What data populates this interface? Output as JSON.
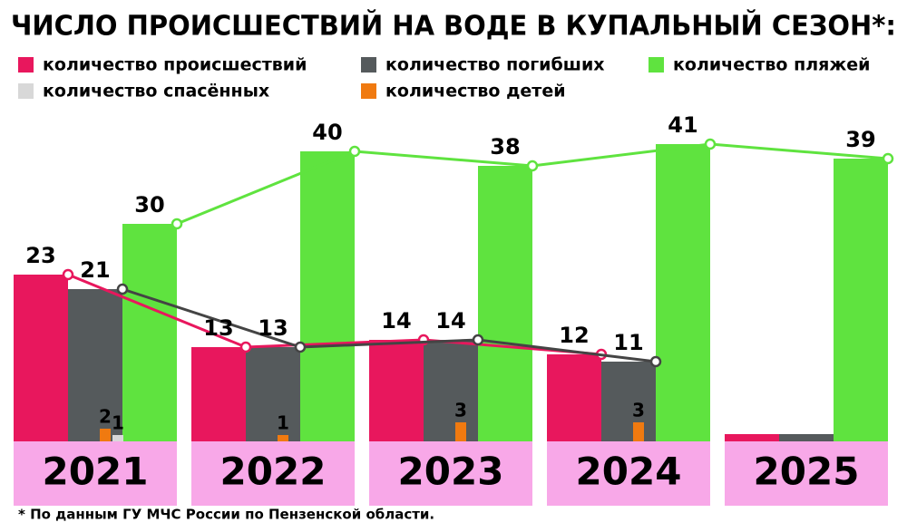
{
  "chart_data": {
    "type": "bar",
    "title": "ЧИСЛО ПРОИСШЕСТВИЙ НА ВОДЕ В КУПАЛЬНЫЙ СЕЗОН*:",
    "note": "* По данным ГУ МЧС России по Пензенской области.",
    "categories": [
      "2021",
      "2022",
      "2023",
      "2024",
      "2025"
    ],
    "ylim": [
      0,
      45
    ],
    "series": [
      {
        "name": "количество происшествий",
        "color": "#e8175d",
        "line": true,
        "values": [
          23,
          13,
          14,
          12,
          1
        ],
        "value_labels": [
          "23",
          "13",
          "14",
          "12",
          null
        ]
      },
      {
        "name": "количество погибших",
        "color": "#555a5c",
        "line": true,
        "values": [
          21,
          13,
          14,
          11,
          1
        ],
        "value_labels": [
          "21",
          "13",
          "14",
          "11",
          null
        ]
      },
      {
        "name": "количество пляжей",
        "color": "#5fe33f",
        "line": true,
        "values": [
          30,
          40,
          38,
          41,
          39
        ]
      },
      {
        "name": "количество спасённых",
        "color": "#d8d8d8",
        "values": [
          1,
          null,
          null,
          null,
          null
        ]
      },
      {
        "name": "количество детей",
        "color": "#f07a10",
        "values": [
          2,
          1,
          3,
          3,
          null
        ]
      }
    ]
  }
}
